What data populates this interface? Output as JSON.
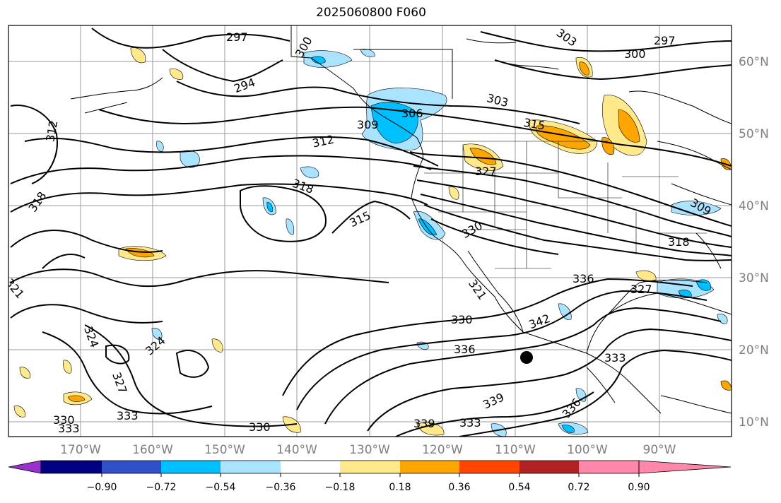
{
  "title": "2025060800 F060",
  "map": {
    "lon_labels": [
      "170°W",
      "160°W",
      "150°W",
      "140°W",
      "130°W",
      "120°W",
      "110°W",
      "100°W",
      "90°W"
    ],
    "lat_labels": [
      "60°N",
      "50°N",
      "40°N",
      "30°N",
      "20°N",
      "10°N"
    ],
    "contour_labels": [
      "297",
      "300",
      "303",
      "297",
      "300",
      "294",
      "303",
      "306",
      "309",
      "312",
      "312",
      "315",
      "318",
      "318",
      "315",
      "327",
      "330",
      "309",
      "318",
      "321",
      "336",
      "321",
      "327",
      "330",
      "342",
      "336",
      "333",
      "324",
      "324",
      "327",
      "333",
      "333",
      "330",
      "330",
      "339",
      "339",
      "333",
      "336"
    ]
  },
  "colorbar": {
    "colors": [
      "#9932cc",
      "#000080",
      "#3050c8",
      "#00bfff",
      "#aae3ff",
      "#ffffff",
      "#ffe98a",
      "#ffa500",
      "#ff4500",
      "#b22222",
      "#ff88aa"
    ],
    "tick_labels": [
      "−0.90",
      "−0.72",
      "−0.54",
      "−0.36",
      "−0.18",
      "0.18",
      "0.36",
      "0.54",
      "0.72",
      "0.90"
    ]
  }
}
